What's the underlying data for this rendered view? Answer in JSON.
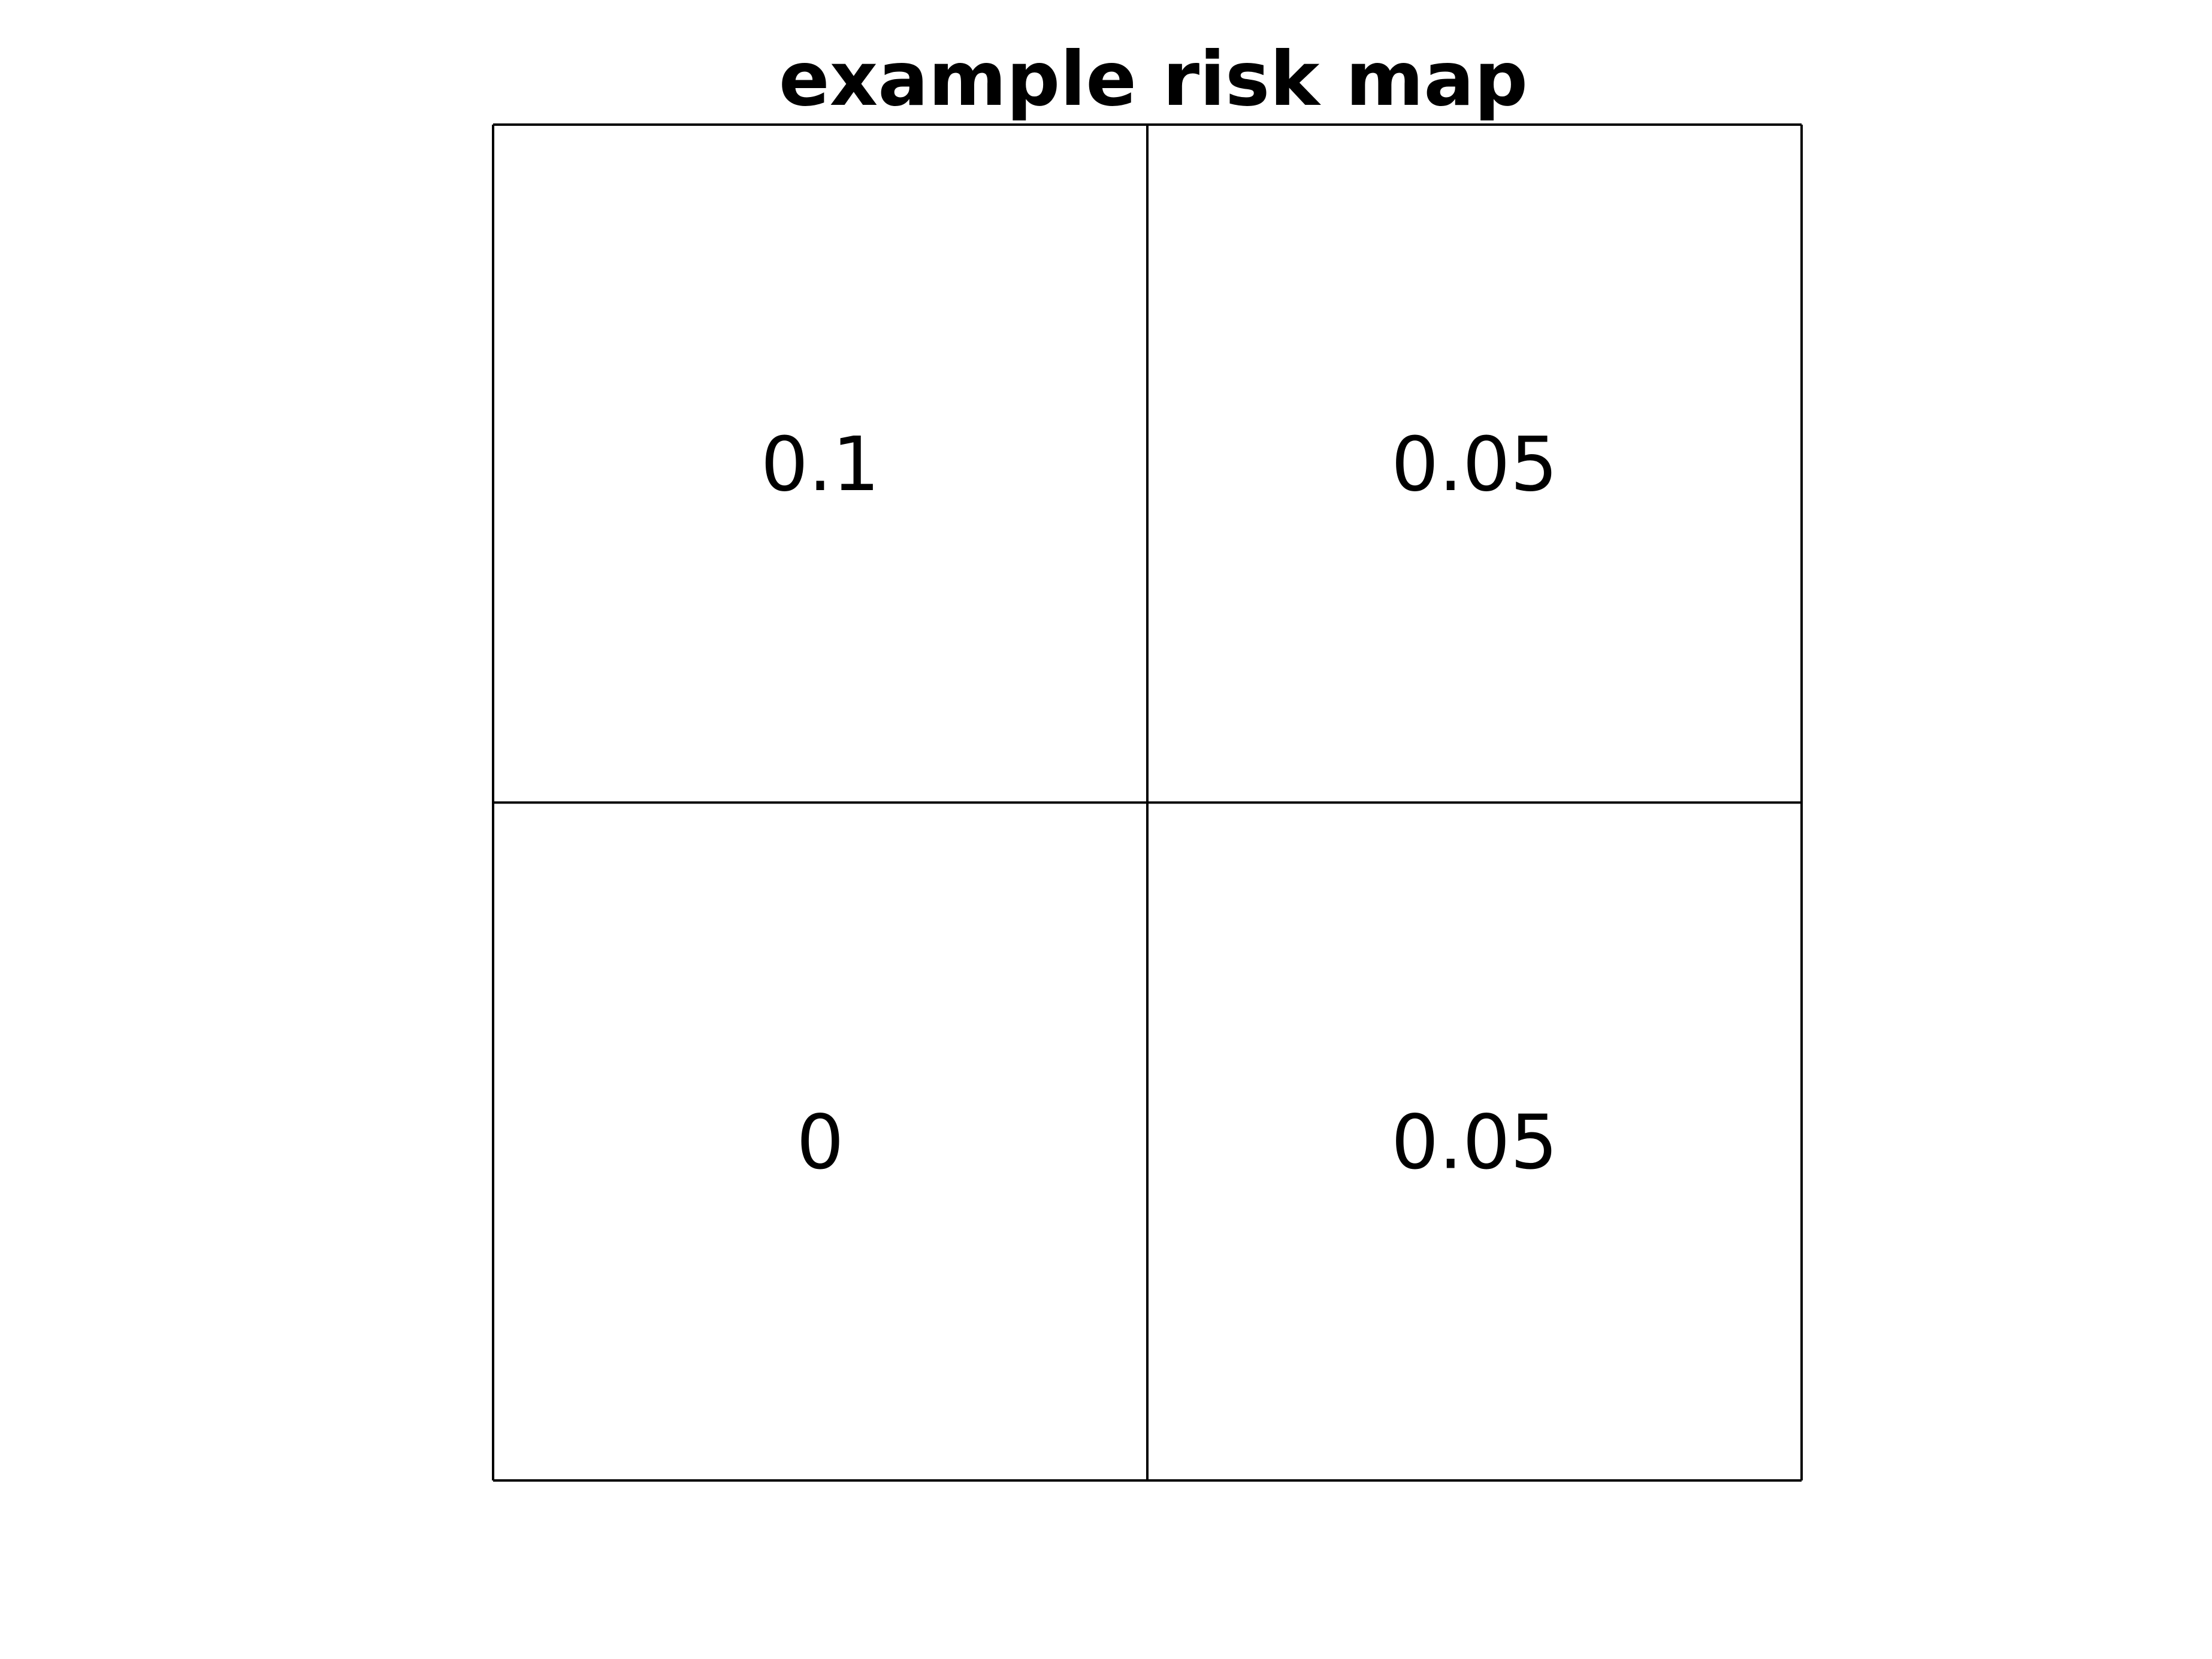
{
  "chart_data": {
    "type": "heatmap",
    "title": "example risk map",
    "xlabel": "",
    "ylabel": "",
    "rows": 2,
    "cols": 2,
    "cells": [
      {
        "row": 0,
        "col": 0,
        "value": 0.1,
        "label": "0.1"
      },
      {
        "row": 0,
        "col": 1,
        "value": 0.05,
        "label": "0.05"
      },
      {
        "row": 1,
        "col": 0,
        "value": 0,
        "label": "0"
      },
      {
        "row": 1,
        "col": 1,
        "value": 0.05,
        "label": "0.05"
      }
    ],
    "cell_fill": "#ffffff",
    "grid": true,
    "colors": {
      "line": "#000000",
      "text": "#000000",
      "background": "#ffffff"
    }
  }
}
